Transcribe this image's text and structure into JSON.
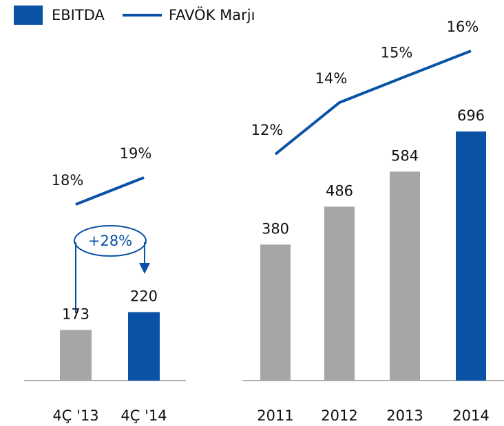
{
  "chart_data": [
    {
      "type": "bar-line",
      "categories": [
        "4Ç '13",
        "4Ç '14"
      ],
      "series": [
        {
          "name": "EBITDA",
          "colors": [
            "#a6a6a6",
            "#0a52a6"
          ],
          "color": "#0a52a6",
          "values": [
            173,
            220
          ]
        },
        {
          "name": "FAVÖK Marjı",
          "color": "#0a52a6",
          "axis": "y2",
          "values": [
            18,
            19
          ],
          "value_labels": [
            "18%",
            "19%"
          ]
        }
      ],
      "ylim": [
        40,
        400
      ],
      "y2lim": [
        16,
        20
      ],
      "annotations": [
        "+28%"
      ]
    },
    {
      "type": "bar-line",
      "categories": [
        "2011",
        "2012",
        "2013",
        "2014"
      ],
      "series": [
        {
          "colors": [
            "#a6a6a6",
            "#a6a6a6",
            "#a6a6a6",
            "#0a52a6"
          ],
          "values": [
            380,
            486,
            584,
            696
          ]
        },
        {
          "color": "#0a52a6",
          "axis": "y2",
          "values": [
            12,
            14,
            15,
            16
          ],
          "value_labels": [
            "12%",
            "14%",
            "15%",
            "16%"
          ]
        }
      ],
      "ylim": [
        0,
        750
      ],
      "y2lim": [
        8,
        17
      ]
    }
  ]
}
